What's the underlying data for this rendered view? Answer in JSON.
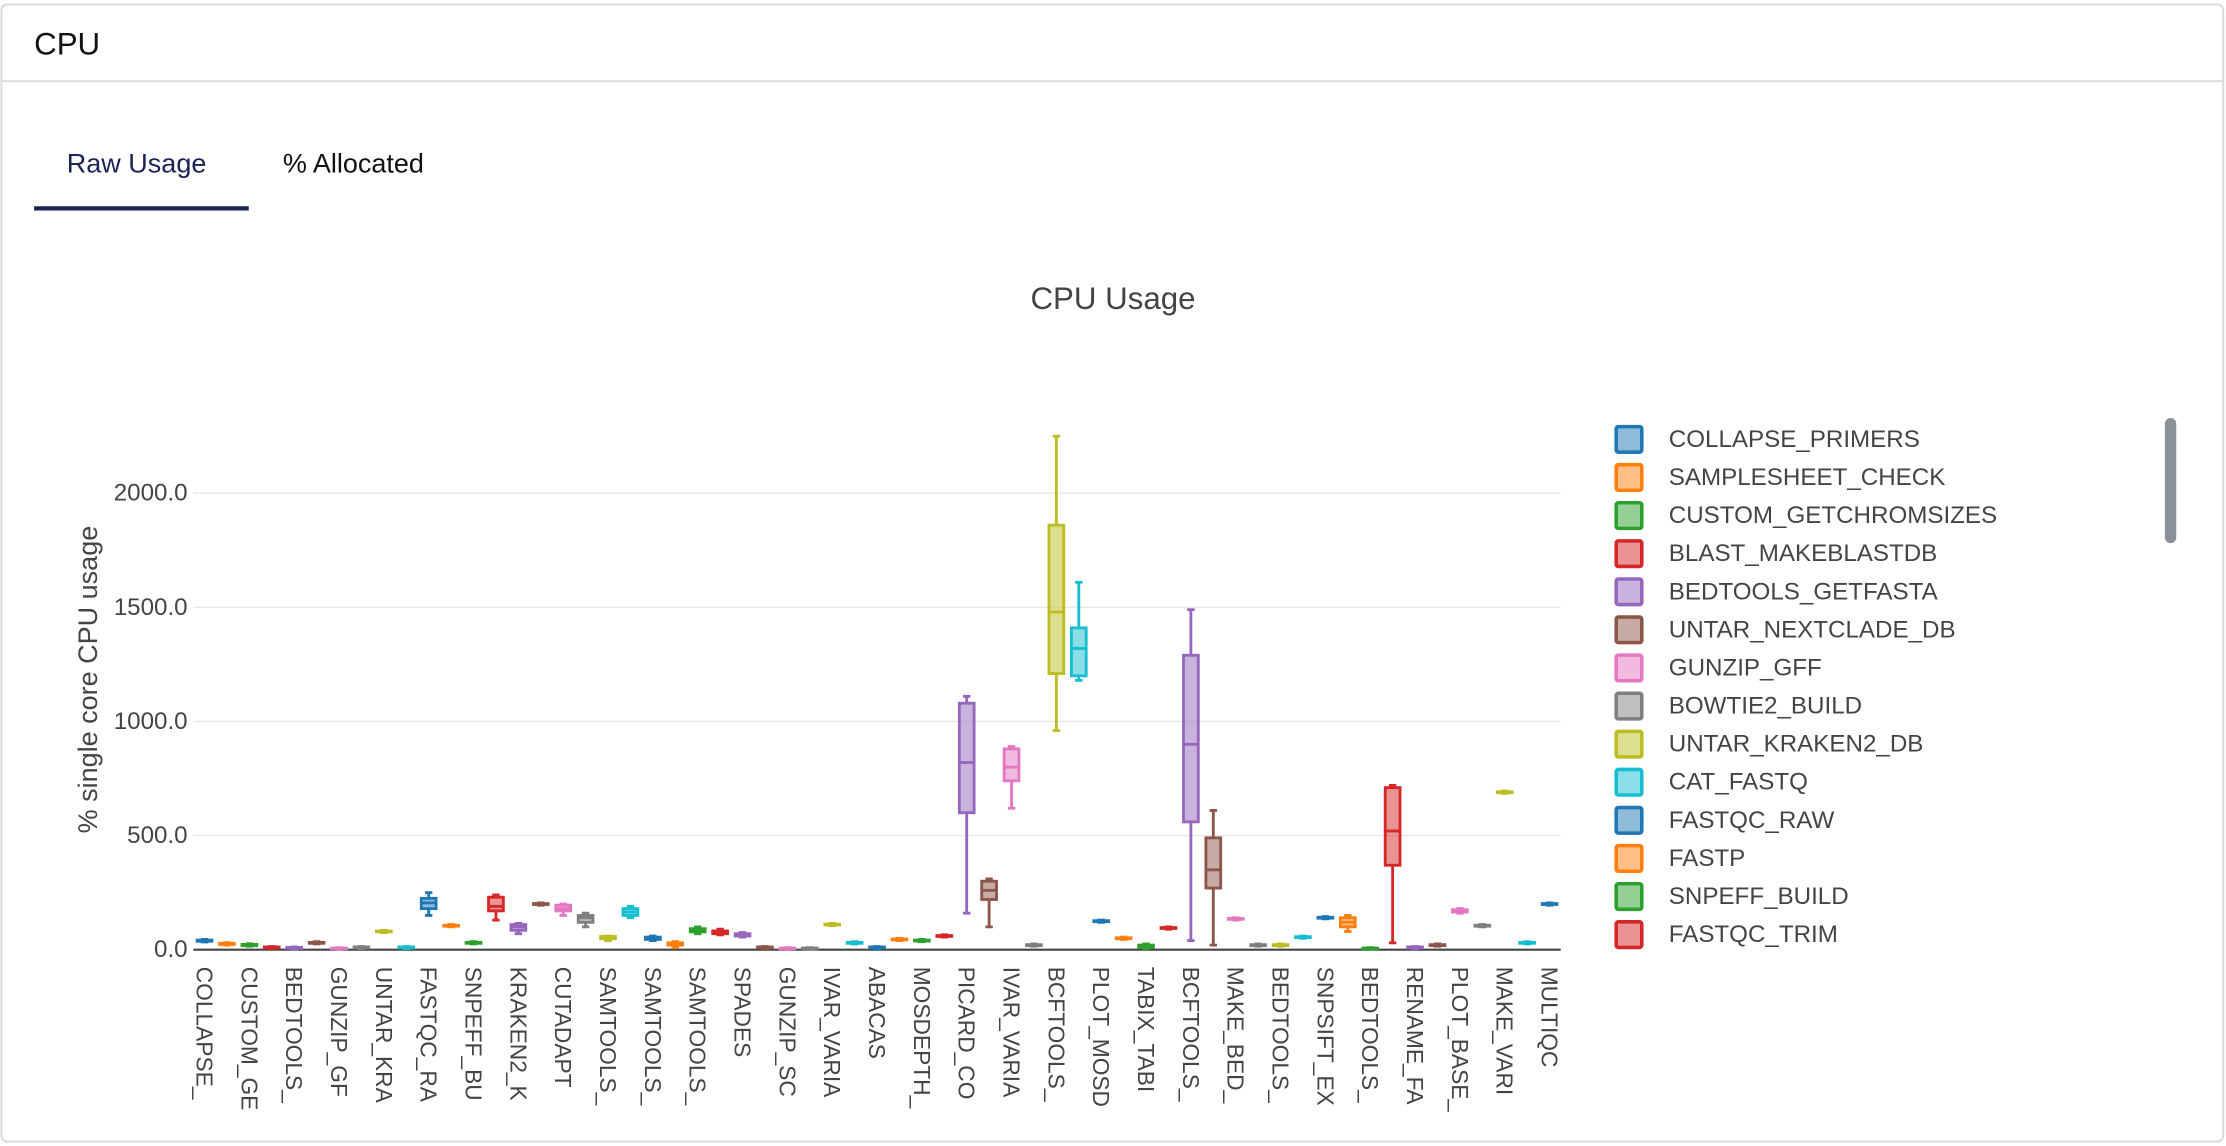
{
  "card": {
    "title": "CPU"
  },
  "tabs": [
    "Raw Usage",
    "% Allocated"
  ],
  "chart_data": {
    "type": "box",
    "title": "CPU Usage",
    "y_label": "% single core CPU usage",
    "ylim": [
      0,
      2510
    ],
    "yticks": [
      {
        "value": 0,
        "label": "0.0"
      },
      {
        "value": 500,
        "label": "500.0"
      },
      {
        "value": 1000,
        "label": "1000.0"
      },
      {
        "value": 1500,
        "label": "1500.0"
      },
      {
        "value": 2000,
        "label": "2000.0"
      }
    ],
    "grid": true,
    "palette": [
      "#1f77b4",
      "#ff7f0e",
      "#2ca02c",
      "#d62728",
      "#9467bd",
      "#8c564b",
      "#e377c2",
      "#7f7f7f",
      "#bcbd22",
      "#17becf"
    ],
    "legend": [
      "COLLAPSE_PRIMERS",
      "SAMPLESHEET_CHECK",
      "CUSTOM_GETCHROMSIZES",
      "BLAST_MAKEBLASTDB",
      "BEDTOOLS_GETFASTA",
      "UNTAR_NEXTCLADE_DB",
      "GUNZIP_GFF",
      "BOWTIE2_BUILD",
      "UNTAR_KRAKEN2_DB",
      "CAT_FASTQ",
      "FASTQC_RAW",
      "FASTP",
      "SNPEFF_BUILD",
      "FASTQC_TRIM"
    ],
    "categories": [
      "COLLAPSE_",
      null,
      "CUSTOM_GE",
      null,
      "BEDTOOLS_",
      null,
      "GUNZIP_GF",
      null,
      "UNTAR_KRA",
      null,
      "FASTQC_RA",
      null,
      "SNPEFF_BU",
      null,
      "KRAKEN2_K",
      null,
      "CUTADAPT",
      null,
      "SAMTOOLS_",
      null,
      "SAMTOOLS_",
      null,
      "SAMTOOLS_",
      null,
      "SPADES",
      null,
      "GUNZIP_SC",
      null,
      "IVAR_VARIA",
      null,
      "ABACAS",
      null,
      "MOSDEPTH_",
      null,
      "PICARD_CO",
      null,
      "IVAR_VARIA",
      null,
      "BCFTOOLS_",
      null,
      "PLOT_MOSD",
      null,
      "TABIX_TABI",
      null,
      "BCFTOOLS_",
      null,
      "MAKE_BED_",
      null,
      "BEDTOOLS_",
      null,
      "SNPSIFT_EX",
      null,
      "BEDTOOLS_",
      null,
      "RENAME_FA",
      null,
      "PLOT_BASE_",
      null,
      "MAKE_VARI",
      null,
      "MULTIQC"
    ],
    "boxes": [
      [
        34,
        37,
        40,
        42,
        45
      ],
      [
        20,
        23,
        26,
        28,
        31
      ],
      [
        15,
        18,
        21,
        23,
        26
      ],
      [
        5,
        8,
        10,
        12,
        14
      ],
      [
        3,
        6,
        8,
        10,
        12
      ],
      [
        25,
        28,
        30,
        32,
        35
      ],
      [
        2,
        4,
        6,
        7,
        9
      ],
      [
        5,
        8,
        10,
        12,
        14
      ],
      [
        75,
        78,
        80,
        82,
        85
      ],
      [
        5,
        8,
        10,
        12,
        14
      ],
      [
        150,
        180,
        205,
        225,
        250
      ],
      [
        100,
        103,
        105,
        107,
        110
      ],
      [
        25,
        28,
        30,
        32,
        35
      ],
      [
        130,
        170,
        190,
        230,
        240
      ],
      [
        70,
        85,
        100,
        110,
        115
      ],
      [
        195,
        198,
        200,
        202,
        205
      ],
      [
        150,
        170,
        180,
        195,
        200
      ],
      [
        100,
        120,
        140,
        150,
        160
      ],
      [
        40,
        48,
        55,
        58,
        60
      ],
      [
        140,
        150,
        165,
        180,
        190
      ],
      [
        40,
        45,
        50,
        55,
        60
      ],
      [
        10,
        20,
        25,
        30,
        35
      ],
      [
        70,
        78,
        85,
        92,
        100
      ],
      [
        65,
        70,
        78,
        82,
        90
      ],
      [
        55,
        60,
        65,
        70,
        75
      ],
      [
        5,
        8,
        10,
        12,
        14
      ],
      [
        2,
        4,
        6,
        7,
        9
      ],
      [
        2,
        4,
        6,
        7,
        9
      ],
      [
        105,
        108,
        110,
        112,
        115
      ],
      [
        25,
        28,
        30,
        32,
        35
      ],
      [
        5,
        8,
        10,
        12,
        14
      ],
      [
        40,
        43,
        45,
        47,
        50
      ],
      [
        35,
        38,
        40,
        42,
        45
      ],
      [
        55,
        58,
        60,
        62,
        65
      ],
      [
        160,
        600,
        820,
        1080,
        1110
      ],
      [
        100,
        220,
        260,
        300,
        310
      ],
      [
        620,
        740,
        800,
        880,
        890
      ],
      [
        15,
        18,
        20,
        22,
        25
      ],
      [
        960,
        1210,
        1480,
        1860,
        2250
      ],
      [
        1180,
        1200,
        1320,
        1410,
        1610
      ],
      [
        120,
        123,
        125,
        127,
        130
      ],
      [
        45,
        48,
        50,
        52,
        55
      ],
      [
        5,
        10,
        15,
        20,
        25
      ],
      [
        90,
        93,
        95,
        97,
        100
      ],
      [
        40,
        560,
        900,
        1290,
        1490
      ],
      [
        20,
        270,
        350,
        490,
        610
      ],
      [
        130,
        133,
        135,
        137,
        140
      ],
      [
        15,
        18,
        20,
        22,
        25
      ],
      [
        15,
        18,
        20,
        22,
        25
      ],
      [
        50,
        53,
        55,
        57,
        60
      ],
      [
        135,
        138,
        140,
        142,
        145
      ],
      [
        80,
        100,
        120,
        140,
        150
      ],
      [
        2,
        4,
        6,
        7,
        9
      ],
      [
        30,
        370,
        520,
        710,
        720
      ],
      [
        5,
        8,
        10,
        12,
        14
      ],
      [
        15,
        18,
        20,
        22,
        25
      ],
      [
        160,
        165,
        170,
        175,
        180
      ],
      [
        100,
        103,
        105,
        107,
        110
      ],
      [
        685,
        688,
        690,
        692,
        695
      ],
      [
        25,
        28,
        30,
        32,
        35
      ],
      [
        195,
        198,
        200,
        202,
        205
      ]
    ]
  }
}
